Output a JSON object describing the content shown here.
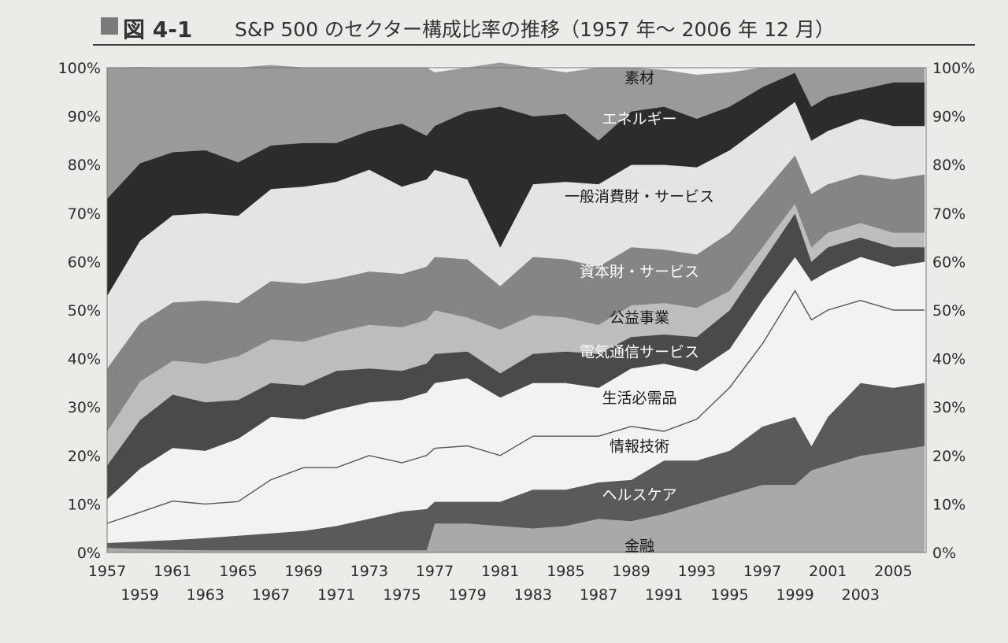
{
  "header": {
    "figure_number": "図 4-1",
    "title": "S&P 500 のセクター構成比率の推移（1957 年～ 2006 年 12 月）"
  },
  "chart_data": {
    "type": "area",
    "stacked": true,
    "xlim": [
      1957,
      2007
    ],
    "ylim": [
      0,
      100
    ],
    "y_ticks": [
      "0%",
      "10%",
      "20%",
      "30%",
      "40%",
      "50%",
      "60%",
      "70%",
      "80%",
      "90%",
      "100%"
    ],
    "y_ticks_right": [
      "0%",
      "10%",
      "20%",
      "30%",
      "40%",
      "50%",
      "60%",
      "70%",
      "80%",
      "90%",
      "100%"
    ],
    "x_ticks_top": [
      "1957",
      "1961",
      "1965",
      "1969",
      "1973",
      "1977",
      "1981",
      "1985",
      "1989",
      "1993",
      "1997",
      "2001",
      "2005"
    ],
    "x_ticks_bottom": [
      "1959",
      "1963",
      "1967",
      "1971",
      "1975",
      "1979",
      "1983",
      "1987",
      "1991",
      "1995",
      "1999",
      "2003"
    ],
    "x": [
      1957,
      1959,
      1961,
      1963,
      1965,
      1967,
      1969,
      1971,
      1973,
      1975,
      1976.5,
      1977,
      1979,
      1981,
      1983,
      1985,
      1987,
      1989,
      1991,
      1993,
      1995,
      1997,
      1999,
      2000,
      2001,
      2003,
      2005,
      2006.9
    ],
    "series": [
      {
        "name": "金融",
        "color": "#a9a9a9",
        "label_x": 1989.5,
        "label_y": 1.5,
        "label_color": "#1a1a1a",
        "values": [
          1.0,
          0.8,
          0.6,
          0.5,
          0.5,
          0.5,
          0.5,
          0.5,
          0.5,
          0.5,
          0.5,
          6.0,
          6.0,
          5.5,
          5.0,
          5.5,
          7.0,
          6.5,
          8.0,
          10.0,
          12.0,
          14.0,
          14.0,
          17.0,
          18.0,
          20.0,
          21.0,
          22.0
        ]
      },
      {
        "name": "ヘルスケア",
        "color": "#5a5a5a",
        "label_x": 1989.5,
        "label_y": 12,
        "label_color": "#ffffff",
        "values": [
          1.0,
          1.5,
          2.0,
          2.5,
          3.0,
          3.5,
          4.0,
          5.0,
          6.5,
          8.0,
          8.5,
          4.5,
          4.5,
          5.0,
          8.0,
          7.5,
          7.5,
          8.5,
          11.0,
          9.0,
          9.0,
          12.0,
          14.0,
          5.0,
          10.0,
          15.0,
          13.0,
          13.0
        ]
      },
      {
        "name": "情報技術",
        "color": "#f2f2f0",
        "label_x": 1989.5,
        "label_y": 22,
        "label_color": "#1a1a1a",
        "values": [
          4.0,
          6.0,
          8.0,
          7.0,
          7.0,
          11.0,
          13.0,
          12.0,
          13.0,
          10.0,
          11.0,
          11.0,
          11.5,
          9.5,
          11.0,
          11.0,
          9.5,
          11.0,
          6.0,
          6.5,
          13.0,
          17.0,
          26.0,
          26.0,
          22.0,
          17.0,
          15.0,
          15.0
        ]
      },
      {
        "name": "生活必需品",
        "color": "#f2f2f0",
        "label_x": 1989.5,
        "label_y": 32,
        "label_color": "#1a1a1a",
        "values": [
          5.0,
          9.0,
          11.0,
          11.0,
          13.0,
          13.0,
          10.0,
          12.0,
          11.0,
          13.0,
          13.0,
          13.5,
          14.0,
          12.0,
          11.0,
          11.0,
          10.0,
          12.0,
          14.0,
          12.0,
          8.0,
          9.0,
          7.0,
          8.0,
          8.0,
          9.0,
          10.0,
          10.0
        ]
      },
      {
        "name": "電気通信サービス",
        "color": "#4a4a4a",
        "label_x": 1989.5,
        "label_y": 41.5,
        "label_color": "#ffffff",
        "values": [
          7.0,
          10.0,
          11.0,
          10.0,
          8.0,
          7.0,
          7.0,
          8.0,
          7.0,
          6.0,
          6.0,
          6.0,
          5.5,
          5.0,
          6.0,
          6.5,
          7.0,
          6.5,
          6.0,
          7.0,
          8.0,
          8.0,
          9.0,
          4.0,
          5.0,
          4.0,
          4.0,
          3.0
        ]
      },
      {
        "name": "公益事業",
        "color": "#bdbdbd",
        "label_x": 1989.5,
        "label_y": 48.5,
        "label_color": "#1a1a1a",
        "values": [
          7.0,
          8.0,
          7.0,
          8.0,
          9.0,
          9.0,
          9.0,
          8.0,
          9.0,
          9.0,
          9.0,
          9.0,
          7.0,
          9.0,
          8.0,
          7.0,
          6.0,
          6.5,
          6.5,
          6.0,
          4.0,
          3.0,
          2.0,
          3.0,
          3.0,
          3.0,
          3.0,
          3.0
        ]
      },
      {
        "name": "資本財・サービス",
        "color": "#858585",
        "label_x": 1989.5,
        "label_y": 58,
        "label_color": "#ffffff",
        "values": [
          13.0,
          12.0,
          12.0,
          13.0,
          11.0,
          12.0,
          12.0,
          11.0,
          11.0,
          11.0,
          11.0,
          11.0,
          12.0,
          9.0,
          12.0,
          12.0,
          12.0,
          12.0,
          11.0,
          11.0,
          12.0,
          11.0,
          10.0,
          11.0,
          10.0,
          10.0,
          11.0,
          12.0
        ]
      },
      {
        "name": "一般消費財・サービス",
        "color": "#e4e4e2",
        "label_x": 1989.5,
        "label_y": 73.5,
        "label_color": "#1a1a1a",
        "values": [
          15.0,
          17.0,
          18.0,
          18.0,
          18.0,
          19.0,
          20.0,
          20.0,
          21.0,
          18.0,
          18.0,
          18.0,
          16.5,
          8.0,
          15.0,
          16.0,
          17.0,
          17.0,
          17.5,
          18.0,
          17.0,
          14.0,
          11.0,
          11.0,
          11.0,
          11.5,
          11.0,
          10.0
        ]
      },
      {
        "name": "エネルギー",
        "color": "#2c2c2c",
        "label_x": 1989.5,
        "label_y": 89.5,
        "label_color": "#ffffff",
        "values": [
          20.0,
          16.0,
          13.0,
          13.0,
          11.0,
          9.0,
          9.0,
          8.0,
          8.0,
          13.0,
          9.0,
          9.0,
          14.0,
          29.0,
          14.0,
          14.0,
          9.0,
          11.0,
          12.0,
          10.0,
          9.0,
          8.0,
          6.0,
          7.0,
          7.0,
          6.0,
          9.0,
          9.0
        ]
      },
      {
        "name": "素材",
        "color": "#9a9a9a",
        "label_x": 1989.5,
        "label_y": 98,
        "label_color": "#1a1a1a",
        "values": [
          27.0,
          19.8,
          17.4,
          17.0,
          19.5,
          16.5,
          15.5,
          15.5,
          13.0,
          11.5,
          14.0,
          11.0,
          9.0,
          9.0,
          10.0,
          8.5,
          15.0,
          9.0,
          7.5,
          9.0,
          7.0,
          4.0,
          1.0,
          8.0,
          6.0,
          4.5,
          3.0,
          3.0
        ]
      }
    ],
    "line_overlay": {
      "color": "#555555",
      "x": [
        1957,
        1959,
        1961,
        1963,
        1965,
        1967,
        1969,
        1971,
        1973,
        1975,
        1976.5,
        1977,
        1979,
        1981,
        1983,
        1985,
        1987,
        1989,
        1991,
        1993,
        1995,
        1997,
        1999,
        2000,
        2001,
        2003,
        2005,
        2006.9
      ],
      "values": [
        6.0,
        8.3,
        10.6,
        10.0,
        10.5,
        15.0,
        17.5,
        17.5,
        20.0,
        18.5,
        20.0,
        21.5,
        22.0,
        20.0,
        24.0,
        24.0,
        24.0,
        26.0,
        25.0,
        27.5,
        34.0,
        43.0,
        54.0,
        48.0,
        50.0,
        52.0,
        50.0,
        50.0
      ]
    }
  }
}
